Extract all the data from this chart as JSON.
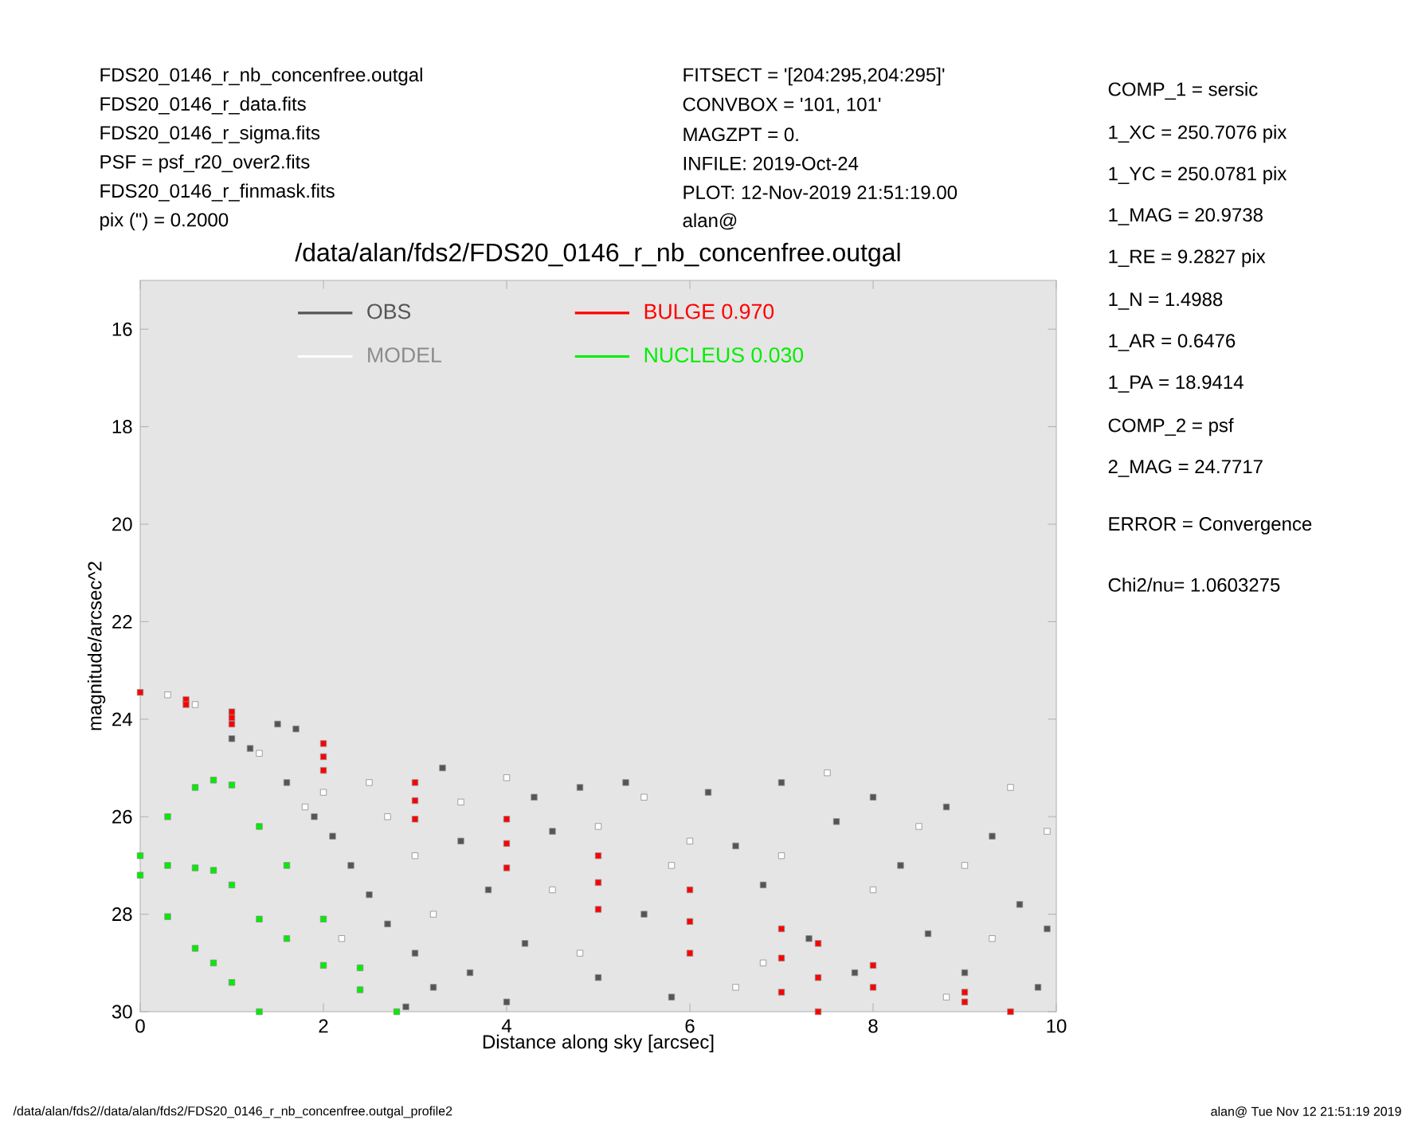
{
  "chart_data": {
    "type": "scatter",
    "title": "/data/alan/fds2/FDS20_0146_r_nb_concenfree.outgal",
    "xlabel": "Distance along sky [arcsec]",
    "ylabel": "magnitude/arcsec^2",
    "xlim": [
      0,
      10
    ],
    "ylim": [
      30,
      15
    ],
    "xticks": [
      0,
      2,
      4,
      6,
      8,
      10
    ],
    "yticks": [
      16,
      18,
      20,
      22,
      24,
      26,
      28,
      30
    ],
    "legend": "top",
    "marker": "square",
    "series": [
      {
        "name": "OBS",
        "color": "#555555",
        "x": [
          1.0,
          1.2,
          1.5,
          1.7,
          1.6,
          1.9,
          2.1,
          2.3,
          2.5,
          2.7,
          3.0,
          3.2,
          3.6,
          3.3,
          3.8,
          4.2,
          4.5,
          4.8,
          5.0,
          5.3,
          5.5,
          5.8,
          6.2,
          6.5,
          6.8,
          7.0,
          7.3,
          7.6,
          7.8,
          8.0,
          8.3,
          8.6,
          8.8,
          9.0,
          9.3,
          9.6,
          9.8,
          9.9,
          2.9,
          4.0,
          3.5,
          4.3
        ],
        "values": [
          24.4,
          24.6,
          24.1,
          24.2,
          25.3,
          26.0,
          26.4,
          27.0,
          27.6,
          28.2,
          28.8,
          29.5,
          29.2,
          25.0,
          27.5,
          28.6,
          26.3,
          25.4,
          29.3,
          25.3,
          28.0,
          29.7,
          25.5,
          26.6,
          27.4,
          25.3,
          28.5,
          26.1,
          29.2,
          25.6,
          27.0,
          28.4,
          25.8,
          29.2,
          26.4,
          27.8,
          29.5,
          28.3,
          29.9,
          29.8,
          26.5,
          25.6
        ]
      },
      {
        "name": "MODEL",
        "color": "#ffffff",
        "x": [
          0.3,
          0.6,
          1.3,
          2.0,
          2.5,
          3.0,
          3.5,
          4.0,
          4.5,
          5.0,
          5.5,
          6.0,
          6.5,
          7.0,
          7.5,
          8.0,
          8.5,
          9.0,
          9.5,
          9.9,
          2.2,
          3.2,
          4.8,
          5.8,
          6.8,
          8.8,
          9.3,
          1.8,
          2.7
        ],
        "values": [
          23.5,
          23.7,
          24.7,
          25.5,
          25.3,
          26.8,
          25.7,
          25.2,
          27.5,
          26.2,
          25.6,
          26.5,
          29.5,
          26.8,
          25.1,
          27.5,
          26.2,
          27.0,
          25.4,
          26.3,
          28.5,
          28.0,
          28.8,
          27.0,
          29.0,
          29.7,
          28.5,
          25.8,
          26.0
        ]
      },
      {
        "name": "BULGE 0.970",
        "color": "#ff0000",
        "x": [
          0,
          0.5,
          1,
          2,
          3,
          4,
          5,
          6,
          7,
          7.4,
          8,
          9,
          9.5,
          1,
          2,
          3,
          4,
          5,
          6,
          7,
          7.4,
          8,
          9,
          0.5,
          1,
          2,
          3,
          4,
          5,
          6,
          7,
          7.4
        ],
        "values": [
          23.45,
          23.6,
          23.85,
          24.5,
          25.3,
          26.05,
          26.8,
          27.5,
          28.3,
          28.6,
          29.05,
          29.6,
          30,
          23.97,
          24.77,
          25.67,
          26.55,
          27.35,
          28.15,
          28.9,
          29.3,
          29.5,
          29.8,
          23.7,
          24.1,
          25.05,
          26.05,
          27.05,
          27.9,
          28.8,
          29.6,
          30
        ]
      },
      {
        "name": "NUCLEUS 0.030",
        "color": "#00ee00",
        "x": [
          0,
          0.3,
          0.6,
          0.8,
          1.0,
          1.3,
          1.6,
          2.0,
          2.4,
          2.8,
          0,
          0.3,
          0.6,
          0.8,
          1.0,
          1.3,
          1.6,
          2.0,
          2.4,
          0.3,
          0.6,
          0.8,
          1.0,
          1.3
        ],
        "values": [
          26.8,
          26.0,
          25.4,
          25.25,
          25.35,
          26.2,
          27.0,
          28.1,
          29.1,
          30,
          27.2,
          27.0,
          27.05,
          27.1,
          27.4,
          28.1,
          28.5,
          29.05,
          29.55,
          28.05,
          28.7,
          29.0,
          29.4,
          30
        ]
      }
    ],
    "annotations": [
      "FDS20_0146_r_nb_concenfree.outgal",
      "FDS20_0146_r_data.fits",
      "FDS20_0146_r_sigma.fits",
      "PSF = psf_r20_over2.fits",
      "FDS20_0146_r_finmask.fits",
      "pix (\") = 0.2000",
      "FITSECT = '[204:295,204:295]'",
      "CONVBOX = '101, 101'",
      "MAGZPT = 0.",
      "INFILE: 2019-Oct-24",
      "PLOT: 12-Nov-2019 21:51:19.00",
      "alan@",
      "COMP_1 = sersic",
      "1_XC = 250.7076 pix",
      "1_YC = 250.0781 pix",
      "1_MAG = 20.9738",
      "1_RE = 9.2827 pix",
      "1_N = 1.4988",
      "1_AR = 0.6476",
      "1_PA = 18.9414",
      "COMP_2 = psf",
      "2_MAG = 24.7717",
      "ERROR = Convergence",
      "Chi2/nu= 1.0603275",
      "/data/alan/fds2//data/alan/fds2/FDS20_0146_r_nb_concenfree.outgal_profile2",
      "alan@ Tue Nov 12 21:51:19 2019"
    ]
  }
}
